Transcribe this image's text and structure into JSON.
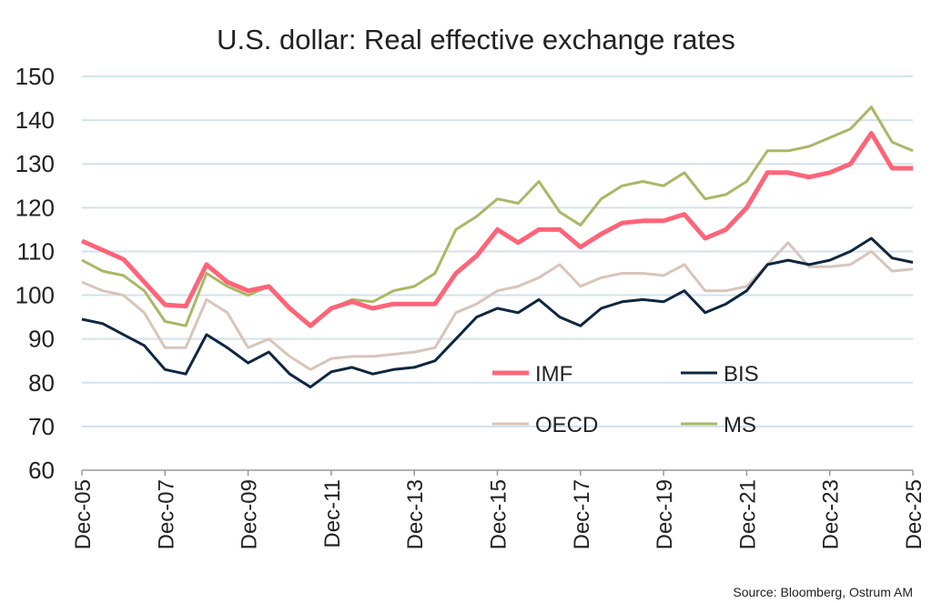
{
  "chart_data": {
    "type": "line",
    "title": "U.S. dollar: Real effective exchange rates",
    "source": "Source: Bloomberg,  Ostrum  AM",
    "ylim": [
      60,
      150
    ],
    "yticks": [
      60,
      70,
      80,
      90,
      100,
      110,
      120,
      130,
      140,
      150
    ],
    "xtick_labels": [
      "Dec-05",
      "Dec-07",
      "Dec-09",
      "Dec-11",
      "Dec-13",
      "Dec-15",
      "Dec-17",
      "Dec-19",
      "Dec-21",
      "Dec-23",
      "Dec-25"
    ],
    "grid": "horizontal",
    "x": [
      "Dec-05",
      "Jun-06",
      "Dec-06",
      "Jun-07",
      "Dec-07",
      "Jun-08",
      "Dec-08",
      "Jun-09",
      "Dec-09",
      "Jun-10",
      "Dec-10",
      "Jun-11",
      "Dec-11",
      "Jun-12",
      "Dec-12",
      "Jun-13",
      "Dec-13",
      "Jun-14",
      "Dec-14",
      "Jun-15",
      "Dec-15",
      "Jun-16",
      "Dec-16",
      "Jun-17",
      "Dec-17",
      "Jun-18",
      "Dec-18",
      "Jun-19",
      "Dec-19",
      "Jun-20",
      "Dec-20",
      "Jun-21",
      "Dec-21",
      "Jun-22",
      "Dec-22",
      "Jun-23",
      "Dec-23",
      "Jun-24",
      "Dec-24",
      "Jun-25",
      "Dec-25"
    ],
    "series": [
      {
        "name": "IMF",
        "color": "#ff6478",
        "values": [
          112.4,
          110.3,
          108.2,
          103,
          97.8,
          97.5,
          107,
          103,
          101,
          102,
          97,
          93,
          97,
          98.5,
          97,
          98,
          98,
          98,
          105,
          109,
          115,
          112,
          115,
          115,
          111,
          114,
          116.5,
          117,
          117,
          118.5,
          113,
          115,
          120,
          128,
          128,
          127,
          128,
          130,
          137,
          129,
          129
        ]
      },
      {
        "name": "BIS",
        "color": "#0f2640",
        "values": [
          94.5,
          93.5,
          91,
          88.5,
          83,
          82,
          91,
          88,
          84.5,
          87,
          82,
          79,
          82.5,
          83.5,
          82,
          83,
          83.5,
          85,
          90,
          95,
          97,
          96,
          99,
          95,
          93,
          97,
          98.5,
          99,
          98.5,
          101,
          96,
          98,
          101,
          107,
          108,
          107,
          108,
          110,
          113,
          108.5,
          107.5
        ]
      },
      {
        "name": "OECD",
        "color": "#d8c5ba",
        "values": [
          103,
          101,
          100,
          96,
          88,
          88,
          99,
          96,
          88,
          90,
          86,
          83,
          85.5,
          86,
          86,
          86.5,
          87,
          88,
          96,
          98,
          101,
          102,
          104,
          107,
          102,
          104,
          105,
          105,
          104.5,
          107,
          101,
          101,
          102,
          107,
          112,
          106.5,
          106.5,
          107,
          110,
          105.5,
          106
        ]
      },
      {
        "name": "MS",
        "color": "#a9b865",
        "values": [
          108,
          105.5,
          104.5,
          101,
          94,
          93,
          105,
          102,
          100,
          102,
          97,
          93,
          97,
          99,
          98.5,
          101,
          102,
          105,
          115,
          118,
          122,
          121,
          126,
          119,
          116,
          122,
          125,
          126,
          125,
          128,
          122,
          123,
          126,
          133,
          133,
          134,
          136,
          138,
          143,
          135,
          133
        ]
      }
    ],
    "legend_placement": "center-right-inside"
  }
}
